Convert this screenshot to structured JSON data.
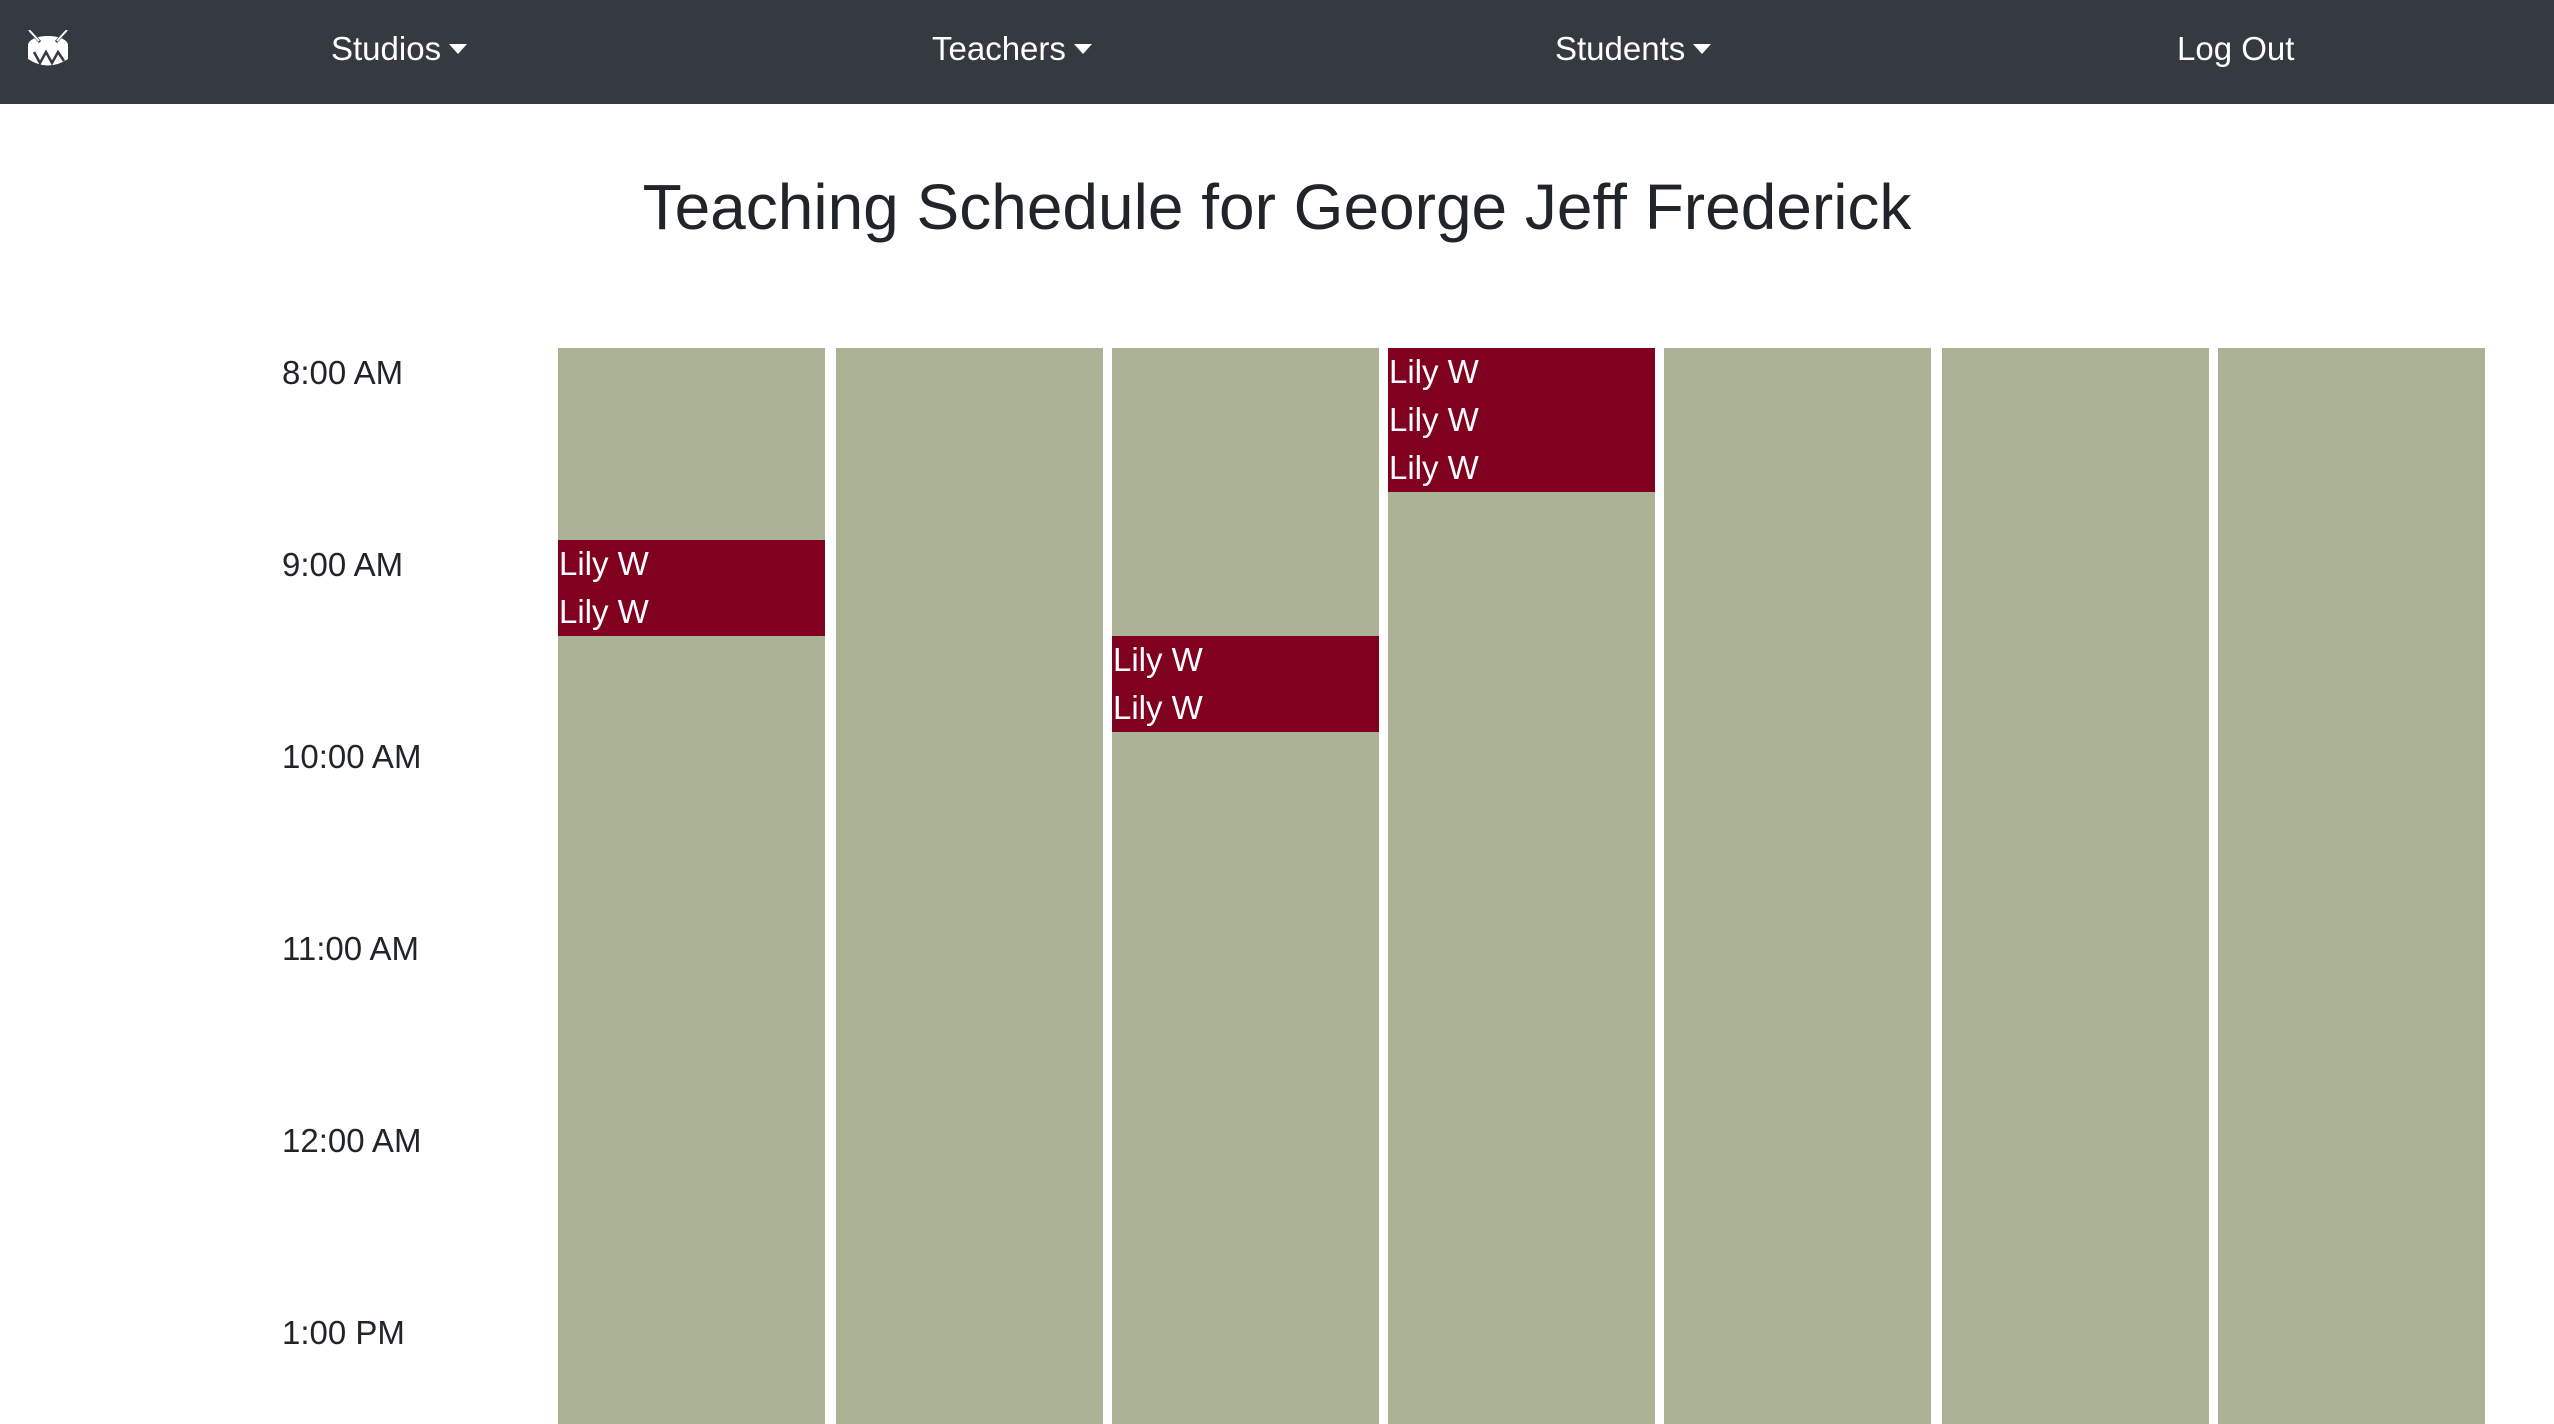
{
  "nav": {
    "brand_icon": "drum-icon",
    "items": [
      {
        "label": "Studios",
        "dropdown": true
      },
      {
        "label": "Teachers",
        "dropdown": true
      },
      {
        "label": "Students",
        "dropdown": true
      },
      {
        "label": "Log Out",
        "dropdown": false
      }
    ]
  },
  "page_title": "Teaching Schedule for George Jeff Frederick",
  "time_labels": [
    "8:00 AM",
    "9:00 AM",
    "10:00 AM",
    "11:00 AM",
    "12:00 AM",
    "1:00 PM"
  ],
  "schedule": {
    "days": [
      {
        "lessons": [
          {
            "start": "9:00 AM",
            "end": "9:30 AM",
            "names": [
              "Lily W",
              "Lily W"
            ]
          }
        ]
      },
      {
        "lessons": []
      },
      {
        "lessons": [
          {
            "start": "9:30 AM",
            "end": "10:00 AM",
            "names": [
              "Lily W",
              "Lily W"
            ]
          }
        ]
      },
      {
        "lessons": [
          {
            "start": "8:00 AM",
            "end": "8:45 AM",
            "names": [
              "Lily W",
              "Lily W",
              "Lily W"
            ]
          }
        ]
      },
      {
        "lessons": []
      },
      {
        "lessons": []
      },
      {
        "lessons": []
      }
    ]
  },
  "colors": {
    "navbar": "#343a40",
    "column": "#acb295",
    "lesson": "#800020",
    "text": "#212529"
  }
}
